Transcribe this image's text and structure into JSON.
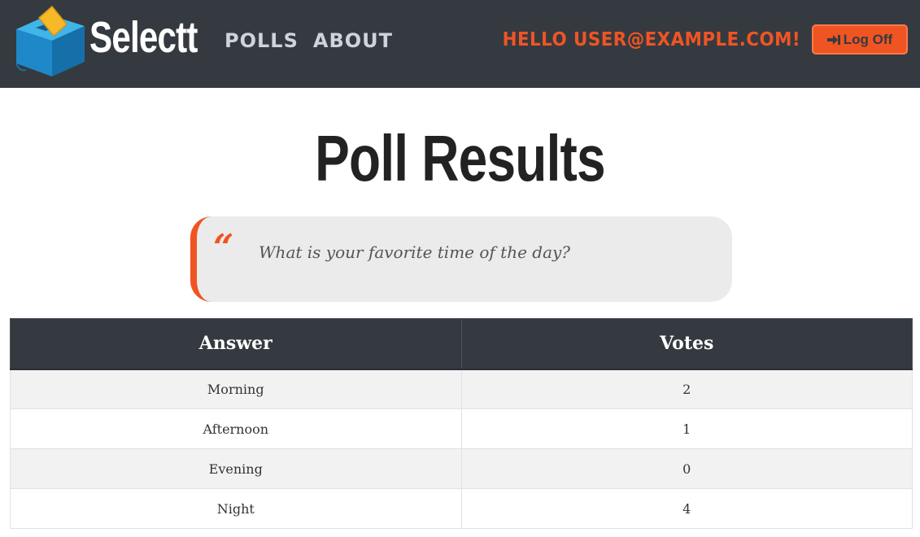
{
  "brand": {
    "name": "Selectt",
    "logo_icon": "ballot-box-icon"
  },
  "nav": {
    "links": [
      {
        "label": "POLLS"
      },
      {
        "label": "ABOUT"
      }
    ]
  },
  "user": {
    "greeting": "HELLO USER@EXAMPLE.COM!",
    "logout_label": "Log Off",
    "logout_icon": "sign-out-icon"
  },
  "page": {
    "title": "Poll Results"
  },
  "question": {
    "quote_mark": "“",
    "text": "What is your favorite time of the day?"
  },
  "table": {
    "headers": [
      "Answer",
      "Votes"
    ],
    "rows": [
      {
        "answer": "Morning",
        "votes": "2"
      },
      {
        "answer": "Afternoon",
        "votes": "1"
      },
      {
        "answer": "Evening",
        "votes": "0"
      },
      {
        "answer": "Night",
        "votes": "4"
      }
    ]
  },
  "colors": {
    "navbar": "#343a40",
    "accent": "#f05423",
    "logo_blue": "#1e88c9",
    "logo_yellow": "#f7b928"
  }
}
